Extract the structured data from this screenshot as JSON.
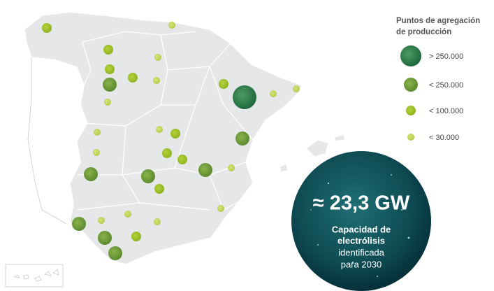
{
  "legend": {
    "title": [
      "Puntos de agregación",
      "de producción"
    ],
    "items": [
      "> 250.000",
      "< 250.000",
      "< 100.000",
      "< 30.000"
    ]
  },
  "callout": {
    "value": "≈ 23,3 GW",
    "lines": [
      "Capacidad de",
      "electrólisis",
      "identificada",
      "para 2030"
    ]
  }
}
